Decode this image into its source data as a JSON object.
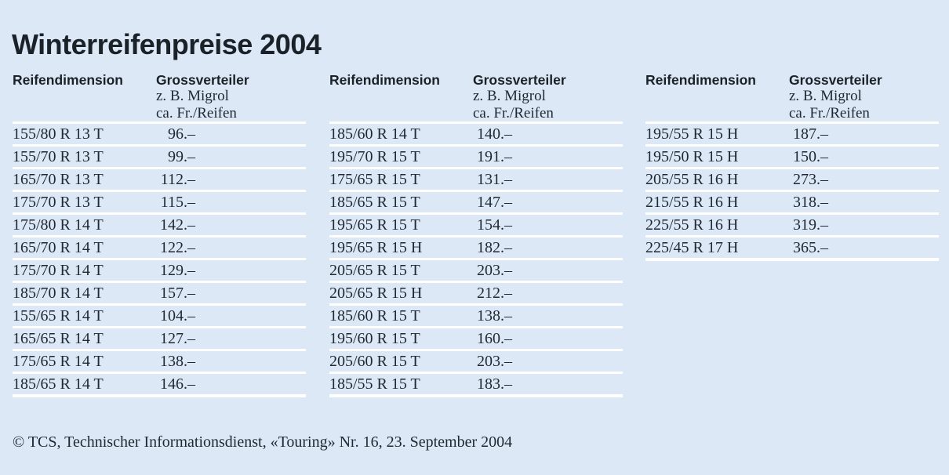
{
  "page": {
    "title": "Winterreifenpreise 2004",
    "footer": "© TCS, Technischer Informationsdienst, «Touring» Nr. 16, 23. September 2004"
  },
  "colors": {
    "background": "#dce8f5",
    "rule": "#ffffff",
    "text": "#1f2933",
    "heading": "#1a2128"
  },
  "column_header": {
    "dimension": "Reifendimension",
    "distributor": "Grossverteiler",
    "example": "z. B. Migrol",
    "unit": "ca. Fr./Reifen"
  },
  "tables": [
    {
      "rows": [
        {
          "dimension": "155/80 R 13 T",
          "price": "96.–"
        },
        {
          "dimension": "155/70 R 13 T",
          "price": "99.–"
        },
        {
          "dimension": "165/70 R 13 T",
          "price": "112.–"
        },
        {
          "dimension": "175/70 R 13 T",
          "price": "115.–"
        },
        {
          "dimension": "175/80 R 14 T",
          "price": "142.–"
        },
        {
          "dimension": "165/70 R 14 T",
          "price": "122.–"
        },
        {
          "dimension": "175/70 R 14 T",
          "price": "129.–"
        },
        {
          "dimension": "185/70 R 14 T",
          "price": "157.–"
        },
        {
          "dimension": "155/65 R 14 T",
          "price": "104.–"
        },
        {
          "dimension": "165/65 R 14 T",
          "price": "127.–"
        },
        {
          "dimension": "175/65 R 14 T",
          "price": "138.–"
        },
        {
          "dimension": "185/65 R 14 T",
          "price": "146.–"
        }
      ]
    },
    {
      "rows": [
        {
          "dimension": "185/60 R 14 T",
          "price": "140.–"
        },
        {
          "dimension": "195/70 R 15 T",
          "price": "191.–"
        },
        {
          "dimension": "175/65 R 15 T",
          "price": "131.–"
        },
        {
          "dimension": "185/65 R 15 T",
          "price": "147.–"
        },
        {
          "dimension": "195/65 R 15 T",
          "price": "154.–"
        },
        {
          "dimension": "195/65 R 15 H",
          "price": "182.–"
        },
        {
          "dimension": "205/65 R 15 T",
          "price": "203.–"
        },
        {
          "dimension": "205/65 R 15 H",
          "price": "212.–"
        },
        {
          "dimension": "185/60 R 15 T",
          "price": "138.–"
        },
        {
          "dimension": "195/60 R 15 T",
          "price": "160.–"
        },
        {
          "dimension": "205/60 R 15 T",
          "price": "203.–"
        },
        {
          "dimension": "185/55 R 15 T",
          "price": "183.–"
        }
      ]
    },
    {
      "rows": [
        {
          "dimension": "195/55 R 15 H",
          "price": "187.–"
        },
        {
          "dimension": "195/50 R 15 H",
          "price": "150.–"
        },
        {
          "dimension": "205/55 R 16 H",
          "price": "273.–"
        },
        {
          "dimension": "215/55 R 16 H",
          "price": "318.–"
        },
        {
          "dimension": "225/55 R 16 H",
          "price": "319.–"
        },
        {
          "dimension": "225/45 R 17 H",
          "price": "365.–"
        }
      ]
    }
  ]
}
